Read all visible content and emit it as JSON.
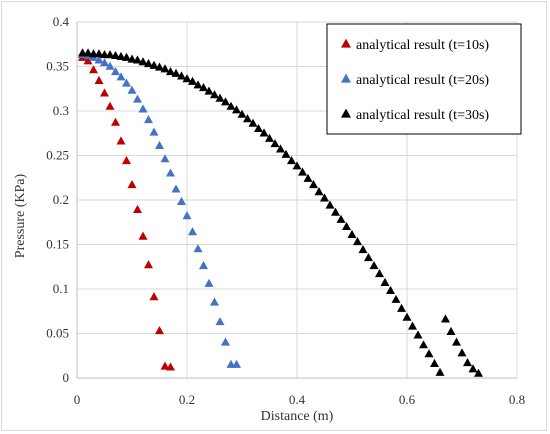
{
  "chart_data": {
    "type": "scatter",
    "title": "",
    "xlabel": "Distance (m)",
    "ylabel": "Pressure (KPa)",
    "xlim": [
      0,
      0.8
    ],
    "ylim": [
      0,
      0.4
    ],
    "x_ticks": [
      "0",
      "0.2",
      "0.4",
      "0.6",
      "0.8"
    ],
    "y_ticks": [
      "0",
      "0.05",
      "0.1",
      "0.15",
      "0.2",
      "0.25",
      "0.3",
      "0.35",
      "0.4"
    ],
    "grid": true,
    "legend_position": "top-right",
    "marker": "triangle",
    "series": [
      {
        "name": "analytical result (t=10s)",
        "color": "#c00000",
        "x": [
          0.01,
          0.02,
          0.03,
          0.04,
          0.05,
          0.06,
          0.07,
          0.08,
          0.09,
          0.1,
          0.11,
          0.12,
          0.13,
          0.14,
          0.15,
          0.16,
          0.17
        ],
        "y": [
          0.36,
          0.356,
          0.346,
          0.334,
          0.32,
          0.305,
          0.287,
          0.266,
          0.244,
          0.217,
          0.189,
          0.159,
          0.127,
          0.091,
          0.053,
          0.013,
          0.012
        ]
      },
      {
        "name": "analytical result (t=20s)",
        "color": "#4472c4",
        "x": [
          0.01,
          0.02,
          0.03,
          0.04,
          0.05,
          0.06,
          0.07,
          0.08,
          0.09,
          0.1,
          0.11,
          0.12,
          0.13,
          0.14,
          0.15,
          0.16,
          0.17,
          0.18,
          0.19,
          0.2,
          0.21,
          0.22,
          0.23,
          0.24,
          0.25,
          0.26,
          0.27,
          0.28,
          0.29
        ],
        "y": [
          0.363,
          0.362,
          0.36,
          0.357,
          0.354,
          0.35,
          0.344,
          0.338,
          0.331,
          0.323,
          0.313,
          0.302,
          0.29,
          0.276,
          0.261,
          0.246,
          0.23,
          0.212,
          0.198,
          0.182,
          0.164,
          0.145,
          0.126,
          0.106,
          0.085,
          0.063,
          0.04,
          0.015,
          0.015
        ]
      },
      {
        "name": "analytical result (t=30s)",
        "color": "#000000",
        "x": [
          0.01,
          0.02,
          0.03,
          0.04,
          0.05,
          0.06,
          0.07,
          0.08,
          0.09,
          0.1,
          0.11,
          0.12,
          0.13,
          0.14,
          0.15,
          0.16,
          0.17,
          0.18,
          0.19,
          0.2,
          0.21,
          0.22,
          0.23,
          0.24,
          0.25,
          0.26,
          0.27,
          0.28,
          0.29,
          0.3,
          0.31,
          0.32,
          0.33,
          0.34,
          0.35,
          0.36,
          0.37,
          0.38,
          0.39,
          0.4,
          0.41,
          0.42,
          0.43,
          0.44,
          0.45,
          0.46,
          0.47,
          0.48,
          0.49,
          0.5,
          0.51,
          0.52,
          0.53,
          0.54,
          0.55,
          0.56,
          0.57,
          0.58,
          0.59,
          0.6,
          0.61,
          0.62,
          0.63,
          0.64,
          0.65,
          0.66,
          0.67,
          0.68,
          0.69,
          0.7,
          0.71,
          0.72,
          0.73
        ],
        "y": [
          0.365,
          0.365,
          0.364,
          0.364,
          0.363,
          0.363,
          0.362,
          0.361,
          0.36,
          0.358,
          0.357,
          0.355,
          0.353,
          0.351,
          0.349,
          0.347,
          0.344,
          0.342,
          0.339,
          0.336,
          0.333,
          0.329,
          0.326,
          0.322,
          0.318,
          0.314,
          0.31,
          0.305,
          0.301,
          0.296,
          0.291,
          0.286,
          0.28,
          0.275,
          0.269,
          0.263,
          0.257,
          0.251,
          0.244,
          0.238,
          0.231,
          0.224,
          0.217,
          0.209,
          0.202,
          0.194,
          0.186,
          0.178,
          0.17,
          0.161,
          0.153,
          0.144,
          0.135,
          0.126,
          0.117,
          0.107,
          0.098,
          0.088,
          0.078,
          0.068,
          0.058,
          0.048,
          0.037,
          0.027,
          0.016,
          0.006,
          0.066,
          0.052,
          0.04,
          0.028,
          0.017,
          0.01,
          0.005
        ]
      }
    ]
  }
}
